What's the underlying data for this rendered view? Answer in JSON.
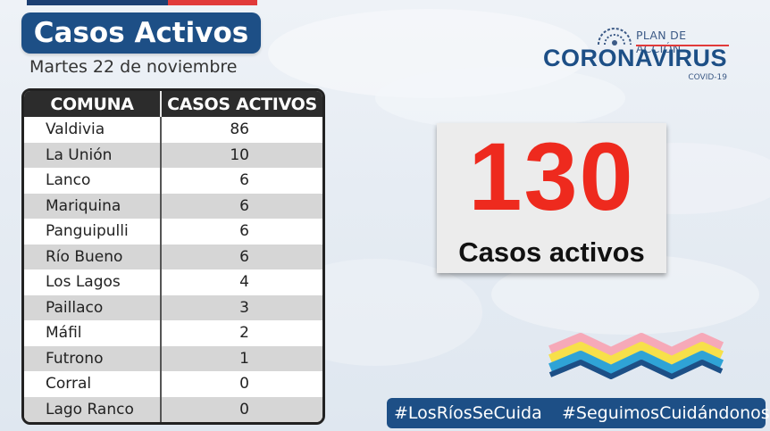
{
  "header": {
    "title": "Casos Activos",
    "date": "Martes 22 de noviembre"
  },
  "table": {
    "columns": [
      "COMUNA",
      "CASOS ACTIVOS"
    ],
    "rows": [
      {
        "comuna": "Valdivia",
        "casos": "86"
      },
      {
        "comuna": "La Unión",
        "casos": "10"
      },
      {
        "comuna": "Lanco",
        "casos": "6"
      },
      {
        "comuna": "Mariquina",
        "casos": "6"
      },
      {
        "comuna": "Panguipulli",
        "casos": "6"
      },
      {
        "comuna": "Río Bueno",
        "casos": "6"
      },
      {
        "comuna": "Los Lagos",
        "casos": "4"
      },
      {
        "comuna": "Paillaco",
        "casos": "3"
      },
      {
        "comuna": "Máfil",
        "casos": "2"
      },
      {
        "comuna": "Futrono",
        "casos": "1"
      },
      {
        "comuna": "Corral",
        "casos": "0"
      },
      {
        "comuna": "Lago Ranco",
        "casos": "0"
      }
    ]
  },
  "logo": {
    "plan": "PLAN DE ACCIÓN",
    "main": "CORONAVIRUS",
    "sub": "COVID-19"
  },
  "total": {
    "value": "130",
    "label": "Casos activos"
  },
  "hashtags": {
    "tag1": "#LosRíosSeCuida",
    "tag2": "#SeguimosCuidándonos"
  },
  "colors": {
    "title_bg": "#1d4f86",
    "total_number": "#ee2a1e",
    "wave": [
      "#f6a9b8",
      "#f7e04a",
      "#2fa3d6",
      "#1d4f86"
    ]
  }
}
